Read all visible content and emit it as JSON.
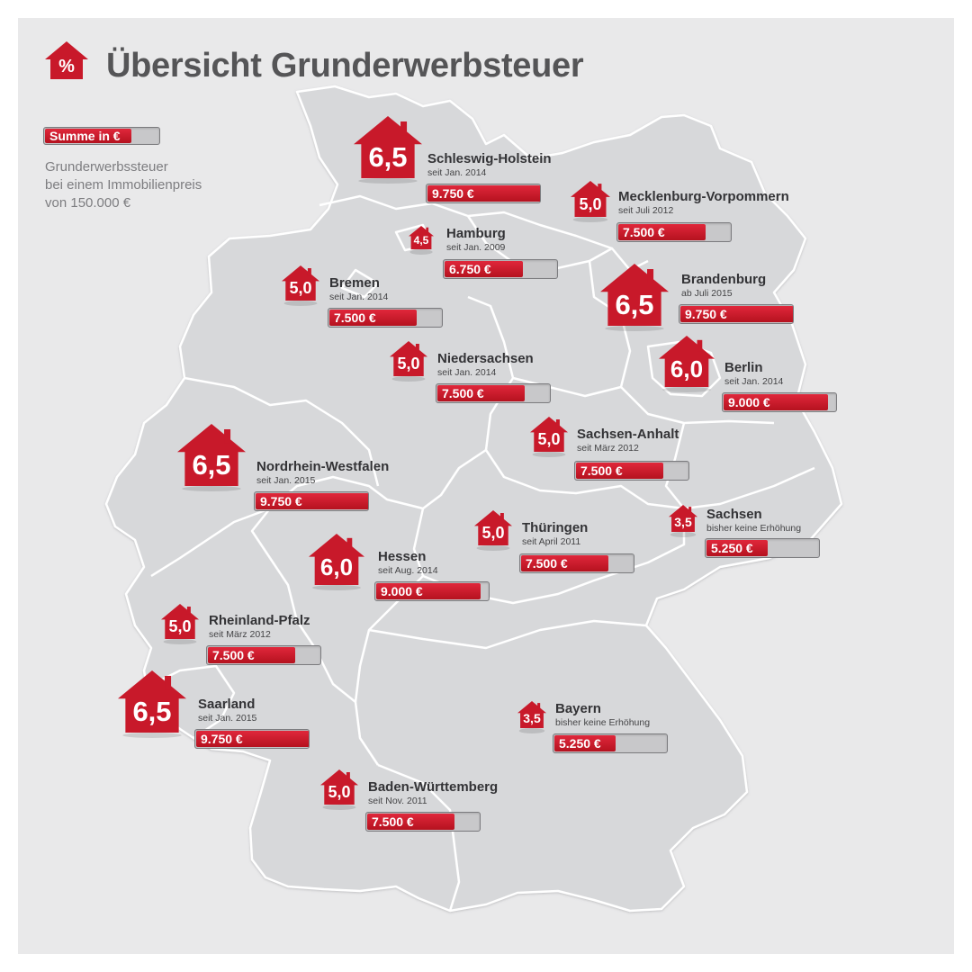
{
  "title": "Übersicht Grunderwerbsteuer",
  "title_icon_symbol": "%",
  "legend": {
    "bar_label": "Summe in €",
    "lines": [
      "Grunderwerbssteuer",
      "bei einem Immobilienpreis",
      "von 150.000 €"
    ]
  },
  "colors": {
    "accent": "#c8192a",
    "map_fill": "#d7d8da",
    "background": "#e9e9ea"
  },
  "icon": "house-icon",
  "max_amount": 9750,
  "states": [
    {
      "id": "schleswig-holstein",
      "name": "Schleswig-Holstein",
      "rate": "6,5",
      "since": "seit Jan. 2014",
      "amount": "9.750 €",
      "amount_value": 9750
    },
    {
      "id": "mecklenburg-vorpommern",
      "name": "Mecklenburg-Vorpommern",
      "rate": "5,0",
      "since": "seit Juli 2012",
      "amount": "7.500 €",
      "amount_value": 7500
    },
    {
      "id": "hamburg",
      "name": "Hamburg",
      "rate": "4,5",
      "since": "seit Jan. 2009",
      "amount": "6.750 €",
      "amount_value": 6750
    },
    {
      "id": "bremen",
      "name": "Bremen",
      "rate": "5,0",
      "since": "seit Jan. 2014",
      "amount": "7.500 €",
      "amount_value": 7500
    },
    {
      "id": "brandenburg",
      "name": "Brandenburg",
      "rate": "6,5",
      "since": "ab Juli 2015",
      "amount": "9.750 €",
      "amount_value": 9750
    },
    {
      "id": "niedersachsen",
      "name": "Niedersachsen",
      "rate": "5,0",
      "since": "seit Jan. 2014",
      "amount": "7.500 €",
      "amount_value": 7500
    },
    {
      "id": "berlin",
      "name": "Berlin",
      "rate": "6,0",
      "since": "seit Jan. 2014",
      "amount": "9.000 €",
      "amount_value": 9000
    },
    {
      "id": "sachsen-anhalt",
      "name": "Sachsen-Anhalt",
      "rate": "5,0",
      "since": "seit März 2012",
      "amount": "7.500 €",
      "amount_value": 7500
    },
    {
      "id": "nordrhein-westfalen",
      "name": "Nordrhein-Westfalen",
      "rate": "6,5",
      "since": "seit Jan. 2015",
      "amount": "9.750 €",
      "amount_value": 9750
    },
    {
      "id": "sachsen",
      "name": "Sachsen",
      "rate": "3,5",
      "since": "bisher keine Erhöhung",
      "amount": "5.250 €",
      "amount_value": 5250
    },
    {
      "id": "thueringen",
      "name": "Thüringen",
      "rate": "5,0",
      "since": "seit April 2011",
      "amount": "7.500 €",
      "amount_value": 7500
    },
    {
      "id": "hessen",
      "name": "Hessen",
      "rate": "6,0",
      "since": "seit Aug. 2014",
      "amount": "9.000 €",
      "amount_value": 9000
    },
    {
      "id": "rheinland-pfalz",
      "name": "Rheinland-Pfalz",
      "rate": "5,0",
      "since": "seit März 2012",
      "amount": "7.500 €",
      "amount_value": 7500
    },
    {
      "id": "saarland",
      "name": "Saarland",
      "rate": "6,5",
      "since": "seit Jan. 2015",
      "amount": "9.750 €",
      "amount_value": 9750
    },
    {
      "id": "bayern",
      "name": "Bayern",
      "rate": "3,5",
      "since": "bisher keine Erhöhung",
      "amount": "5.250 €",
      "amount_value": 5250
    },
    {
      "id": "baden-wuerttemberg",
      "name": "Baden-Württemberg",
      "rate": "5,0",
      "since": "seit Nov. 2011",
      "amount": "7.500 €",
      "amount_value": 7500
    }
  ]
}
